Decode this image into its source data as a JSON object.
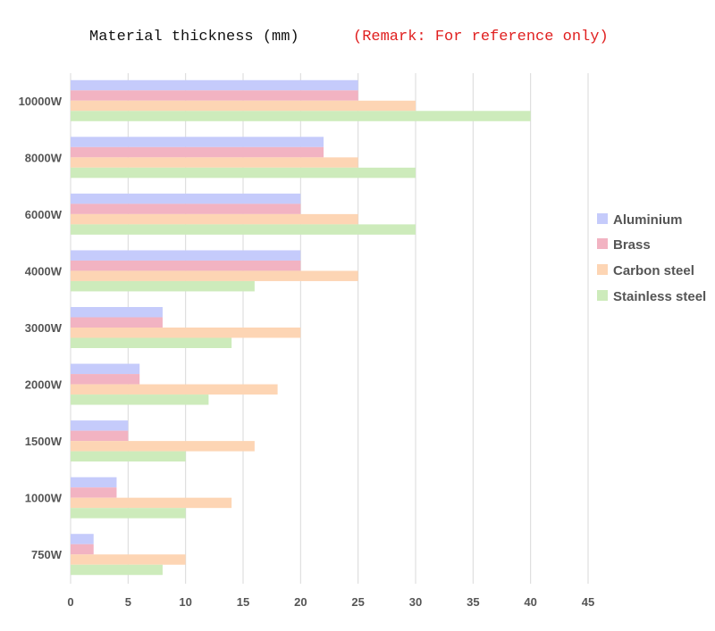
{
  "header": {
    "title": "Material thickness (mm)",
    "remark": "(Remark: For reference only)"
  },
  "chart_data": {
    "type": "bar",
    "orientation": "horizontal",
    "title": "Material thickness (mm)",
    "categories": [
      "10000W",
      "8000W",
      "6000W",
      "4000W",
      "3000W",
      "2000W",
      "1500W",
      "1000W",
      "750W"
    ],
    "series": [
      {
        "name": "Aluminium",
        "color": "#c5cbfb",
        "values": [
          25,
          22,
          20,
          20,
          8,
          6,
          5,
          4,
          2
        ]
      },
      {
        "name": "Brass",
        "color": "#f2b3c2",
        "values": [
          25,
          22,
          20,
          20,
          8,
          6,
          5,
          4,
          2
        ]
      },
      {
        "name": "Carbon steel",
        "color": "#fdd5b4",
        "values": [
          30,
          25,
          25,
          25,
          20,
          18,
          16,
          14,
          10
        ]
      },
      {
        "name": "Stainless steel",
        "color": "#cdebbb",
        "values": [
          40,
          30,
          30,
          16,
          14,
          12,
          10,
          10,
          8
        ]
      }
    ],
    "xlim": [
      0,
      45
    ],
    "xticks": [
      "0",
      "5",
      "10",
      "15",
      "20",
      "25",
      "30",
      "35",
      "40",
      "45"
    ],
    "grid": true,
    "legend": "right"
  }
}
